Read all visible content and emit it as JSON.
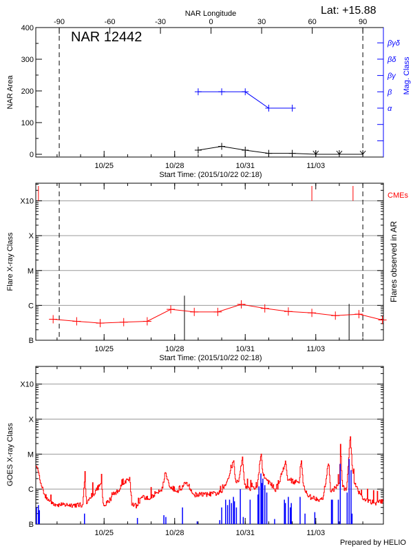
{
  "header": {
    "lat_label": "Lat: +15.88",
    "footer": "Prepared by HELIO"
  },
  "colors": {
    "axes": "#000000",
    "grid": "#999999",
    "area": "#000000",
    "mag_class": "#0000ff",
    "flare_class": "#ff0000",
    "cme": "#ff0000",
    "goes_long": "#ff0000",
    "goes_short": "#0000ff"
  },
  "chart_data": [
    {
      "type": "line",
      "title": "NAR 12442",
      "top_axis": {
        "label": "NAR Longitude",
        "ticks": [
          "-90",
          "-60",
          "-30",
          "0",
          "30",
          "60",
          "90"
        ],
        "xlim": [
          -103.9,
          102.2
        ]
      },
      "xlabel": "Start Time: (2015/10/22 02:18)",
      "x_range": [
        "10/22 02:18",
        "11/05 21:00"
      ],
      "x_ticks": [
        "10/25",
        "10/28",
        "10/31",
        "11/03"
      ],
      "ylabel": "NAR Area",
      "ylim": [
        0,
        400
      ],
      "y_ticks": [
        "0",
        "100",
        "200",
        "300",
        "400"
      ],
      "y2label": "Mag. Class",
      "y2_ticks": [
        "α",
        "β",
        "βγ",
        "βδ",
        "βγδ"
      ],
      "limb_longitudes": [
        -90,
        90
      ],
      "area": {
        "times": [
          "10/29 00:00",
          "10/30 00:00",
          "10/31 00:00",
          "11/01 00:00",
          "11/02 00:00",
          "11/03 00:00",
          "11/04 00:00",
          "11/05 00:00"
        ],
        "values": [
          13,
          25,
          13,
          3,
          3,
          0,
          0,
          0
        ]
      },
      "mag_class": {
        "times": [
          "10/29 00:00",
          "10/30 00:00",
          "10/31 00:00",
          "11/01 00:00",
          "11/02 00:00"
        ],
        "values": [
          "β",
          "β",
          "β",
          "α",
          "α"
        ]
      }
    },
    {
      "type": "line",
      "xlabel": "Start Time: (2015/10/22 02:18)",
      "x_range": [
        "10/22 02:18",
        "11/05 21:00"
      ],
      "x_ticks": [
        "10/25",
        "10/28",
        "10/31",
        "11/03"
      ],
      "ylabel": "Flare X-ray Class",
      "y_scale": "log",
      "ylim": [
        1e-07,
        0.0032
      ],
      "y_ticks": [
        "B",
        "C",
        "M",
        "X",
        "X10"
      ],
      "y_tick_values": [
        1e-07,
        1e-06,
        1e-05,
        0.0001,
        0.001
      ],
      "grid": true,
      "y2label": "Flares observed in AR",
      "cme_label": "CMEs",
      "limb_longitudes": [
        -90,
        90
      ],
      "flare_class": {
        "times": [
          "10/22 20:00",
          "10/23 20:00",
          "10/24 20:00",
          "10/25 20:00",
          "10/26 20:00",
          "10/27 20:00",
          "10/28 20:00",
          "10/29 20:00",
          "10/30 20:00",
          "10/31 20:00",
          "11/01 20:00",
          "11/02 20:00",
          "11/03 20:00",
          "11/04 20:00",
          "11/05 20:00"
        ],
        "values": [
          4e-07,
          3.5e-07,
          3.1e-07,
          3.3e-07,
          3.5e-07,
          7.7e-07,
          6.5e-07,
          6.5e-07,
          1.07e-06,
          8.2e-07,
          6.7e-07,
          6.1e-07,
          5.1e-07,
          5.6e-07,
          3.8e-07
        ]
      },
      "ar_flares": [
        {
          "time": "10/28 10:00",
          "flux": 1.9e-06
        },
        {
          "time": "11/04 10:00",
          "flux": 1.1e-06
        }
      ],
      "cmes": [
        "10/22 05:00",
        "11/02 20:00",
        "11/04 14:00"
      ]
    },
    {
      "type": "line",
      "x_range": [
        "10/22 02:18",
        "11/05 21:00"
      ],
      "x_ticks": [
        "10/25",
        "10/28",
        "10/31",
        "11/03"
      ],
      "ylabel": "GOES X-ray Class",
      "y_scale": "log",
      "ylim": [
        1e-07,
        0.0032
      ],
      "y_ticks": [
        "B",
        "C",
        "M",
        "X",
        "X10"
      ],
      "y_tick_values": [
        1e-07,
        1e-06,
        1e-05,
        0.0001,
        0.001
      ],
      "grid": true,
      "goes_long": [
        [
          "10/22 03:00",
          4.5e-06
        ],
        [
          "10/22 05:00",
          3e-06
        ],
        [
          "10/22 08:00",
          1.2e-06
        ],
        [
          "10/22 11:00",
          7e-07
        ],
        [
          "10/22 16:00",
          4.5e-07
        ],
        [
          "10/22 23:00",
          3.6e-07
        ],
        [
          "10/24 02:00",
          3.5e-07
        ],
        [
          "10/24 04:00",
          2e-06
        ],
        [
          "10/24 06:00",
          3.8e-07
        ],
        [
          "10/24 21:00",
          1.5e-06
        ],
        [
          "10/24 23:00",
          3.6e-07
        ],
        [
          "10/25 00:00",
          3.3e-07
        ],
        [
          "10/26 02:00",
          2.2e-06
        ],
        [
          "10/26 04:00",
          3.5e-07
        ],
        [
          "10/26 10:00",
          3.3e-07
        ],
        [
          "10/26 14:00",
          6e-07
        ],
        [
          "10/26 22:00",
          5e-07
        ],
        [
          "10/27 05:00",
          8e-07
        ],
        [
          "10/27 12:00",
          1.1e-06
        ],
        [
          "10/27 14:00",
          3.2e-06
        ],
        [
          "10/27 19:00",
          1.1e-06
        ],
        [
          "10/28 05:00",
          9e-07
        ],
        [
          "10/28 12:00",
          1.6e-06
        ],
        [
          "10/28 19:00",
          7e-07
        ],
        [
          "10/29 10:00",
          7e-07
        ],
        [
          "10/30 00:00",
          8e-07
        ],
        [
          "10/30 05:00",
          1.6e-06
        ],
        [
          "10/30 12:00",
          6.6e-06
        ],
        [
          "10/30 14:00",
          1.6e-06
        ],
        [
          "10/30 17:00",
          1.6e-06
        ],
        [
          "10/30 21:00",
          8.4e-06
        ],
        [
          "10/30 23:00",
          1.4e-06
        ],
        [
          "10/31 02:00",
          1e-06
        ],
        [
          "10/31 12:00",
          1.1e-06
        ],
        [
          "10/31 16:00",
          1.1e-05
        ],
        [
          "10/31 18:00",
          2.5e-06
        ],
        [
          "10/31 22:00",
          1.8e-06
        ],
        [
          "11/01 08:00",
          9e-07
        ],
        [
          "11/01 17:00",
          6.6e-06
        ],
        [
          "11/01 19:00",
          1.8e-06
        ],
        [
          "11/02 07:00",
          1.5e-06
        ],
        [
          "11/02 09:00",
          7.3e-06
        ],
        [
          "11/02 11:00",
          1.3e-06
        ],
        [
          "11/02 16:00",
          6e-07
        ],
        [
          "11/03 07:00",
          5e-07
        ],
        [
          "11/03 13:00",
          6e-06
        ],
        [
          "11/03 15:00",
          8e-07
        ],
        [
          "11/04 00:00",
          1.5e-06
        ],
        [
          "11/04 01:00",
          2e-05
        ],
        [
          "11/04 03:00",
          1.2e-06
        ],
        [
          "11/04 07:00",
          9e-07
        ],
        [
          "11/04 11:00",
          3.7e-05
        ],
        [
          "11/04 13:00",
          4e-06
        ],
        [
          "11/04 15:00",
          1.5e-06
        ],
        [
          "11/05 00:00",
          5e-07
        ],
        [
          "11/05 12:00",
          4e-07
        ],
        [
          "11/05 21:00",
          4.5e-07
        ]
      ],
      "goes_short": [
        [
          "10/22 03:00",
          3e-07
        ],
        [
          "10/22 05:00",
          3.5e-07
        ],
        [
          "10/22 06:00",
          2.5e-07
        ],
        [
          "10/24 04:00",
          2e-07
        ],
        [
          "10/26 10:00",
          1.5e-07
        ],
        [
          "10/27 13:00",
          1.8e-07
        ],
        [
          "10/27 15:00",
          1.6e-07
        ],
        [
          "10/28 08:00",
          3e-07
        ],
        [
          "10/28 23:00",
          1.2e-07
        ],
        [
          "10/29 22:00",
          1.3e-07
        ],
        [
          "10/30 00:00",
          3e-07
        ],
        [
          "10/30 04:00",
          5e-07
        ],
        [
          "10/30 06:00",
          3.5e-07
        ],
        [
          "10/30 08:00",
          5e-07
        ],
        [
          "10/30 10:00",
          4e-07
        ],
        [
          "10/30 12:00",
          6e-07
        ],
        [
          "10/30 13:00",
          4.5e-07
        ],
        [
          "10/30 15:00",
          3e-07
        ],
        [
          "10/30 19:00",
          1e-06
        ],
        [
          "10/30 22:00",
          1.6e-07
        ],
        [
          "10/31 05:00",
          5e-07
        ],
        [
          "10/31 13:00",
          7e-07
        ],
        [
          "10/31 14:00",
          1.2e-06
        ],
        [
          "10/31 16:00",
          2.8e-06
        ],
        [
          "10/31 17:00",
          1.5e-06
        ],
        [
          "10/31 18:00",
          2e-06
        ],
        [
          "10/31 20:00",
          1.3e-06
        ],
        [
          "10/31 22:00",
          8e-07
        ],
        [
          "11/01 06:00",
          1.4e-07
        ],
        [
          "11/01 16:00",
          5e-07
        ],
        [
          "11/01 17:00",
          4e-07
        ],
        [
          "11/01 20:00",
          6e-07
        ],
        [
          "11/01 22:00",
          3e-07
        ],
        [
          "11/01 23:00",
          4e-07
        ],
        [
          "11/02 08:00",
          6e-07
        ],
        [
          "11/02 13:00",
          2e-07
        ],
        [
          "11/02 23:00",
          2.2e-07
        ],
        [
          "11/03 16:00",
          5e-07
        ],
        [
          "11/03 17:00",
          5e-07
        ],
        [
          "11/03 23:00",
          5e-07
        ],
        [
          "11/04 01:00",
          5.3e-06
        ],
        [
          "11/04 08:00",
          8e-07
        ],
        [
          "11/04 10:00",
          7.3e-06
        ],
        [
          "11/04 12:00",
          3.5e-06
        ],
        [
          "11/04 13:00",
          2e-07
        ]
      ]
    }
  ]
}
